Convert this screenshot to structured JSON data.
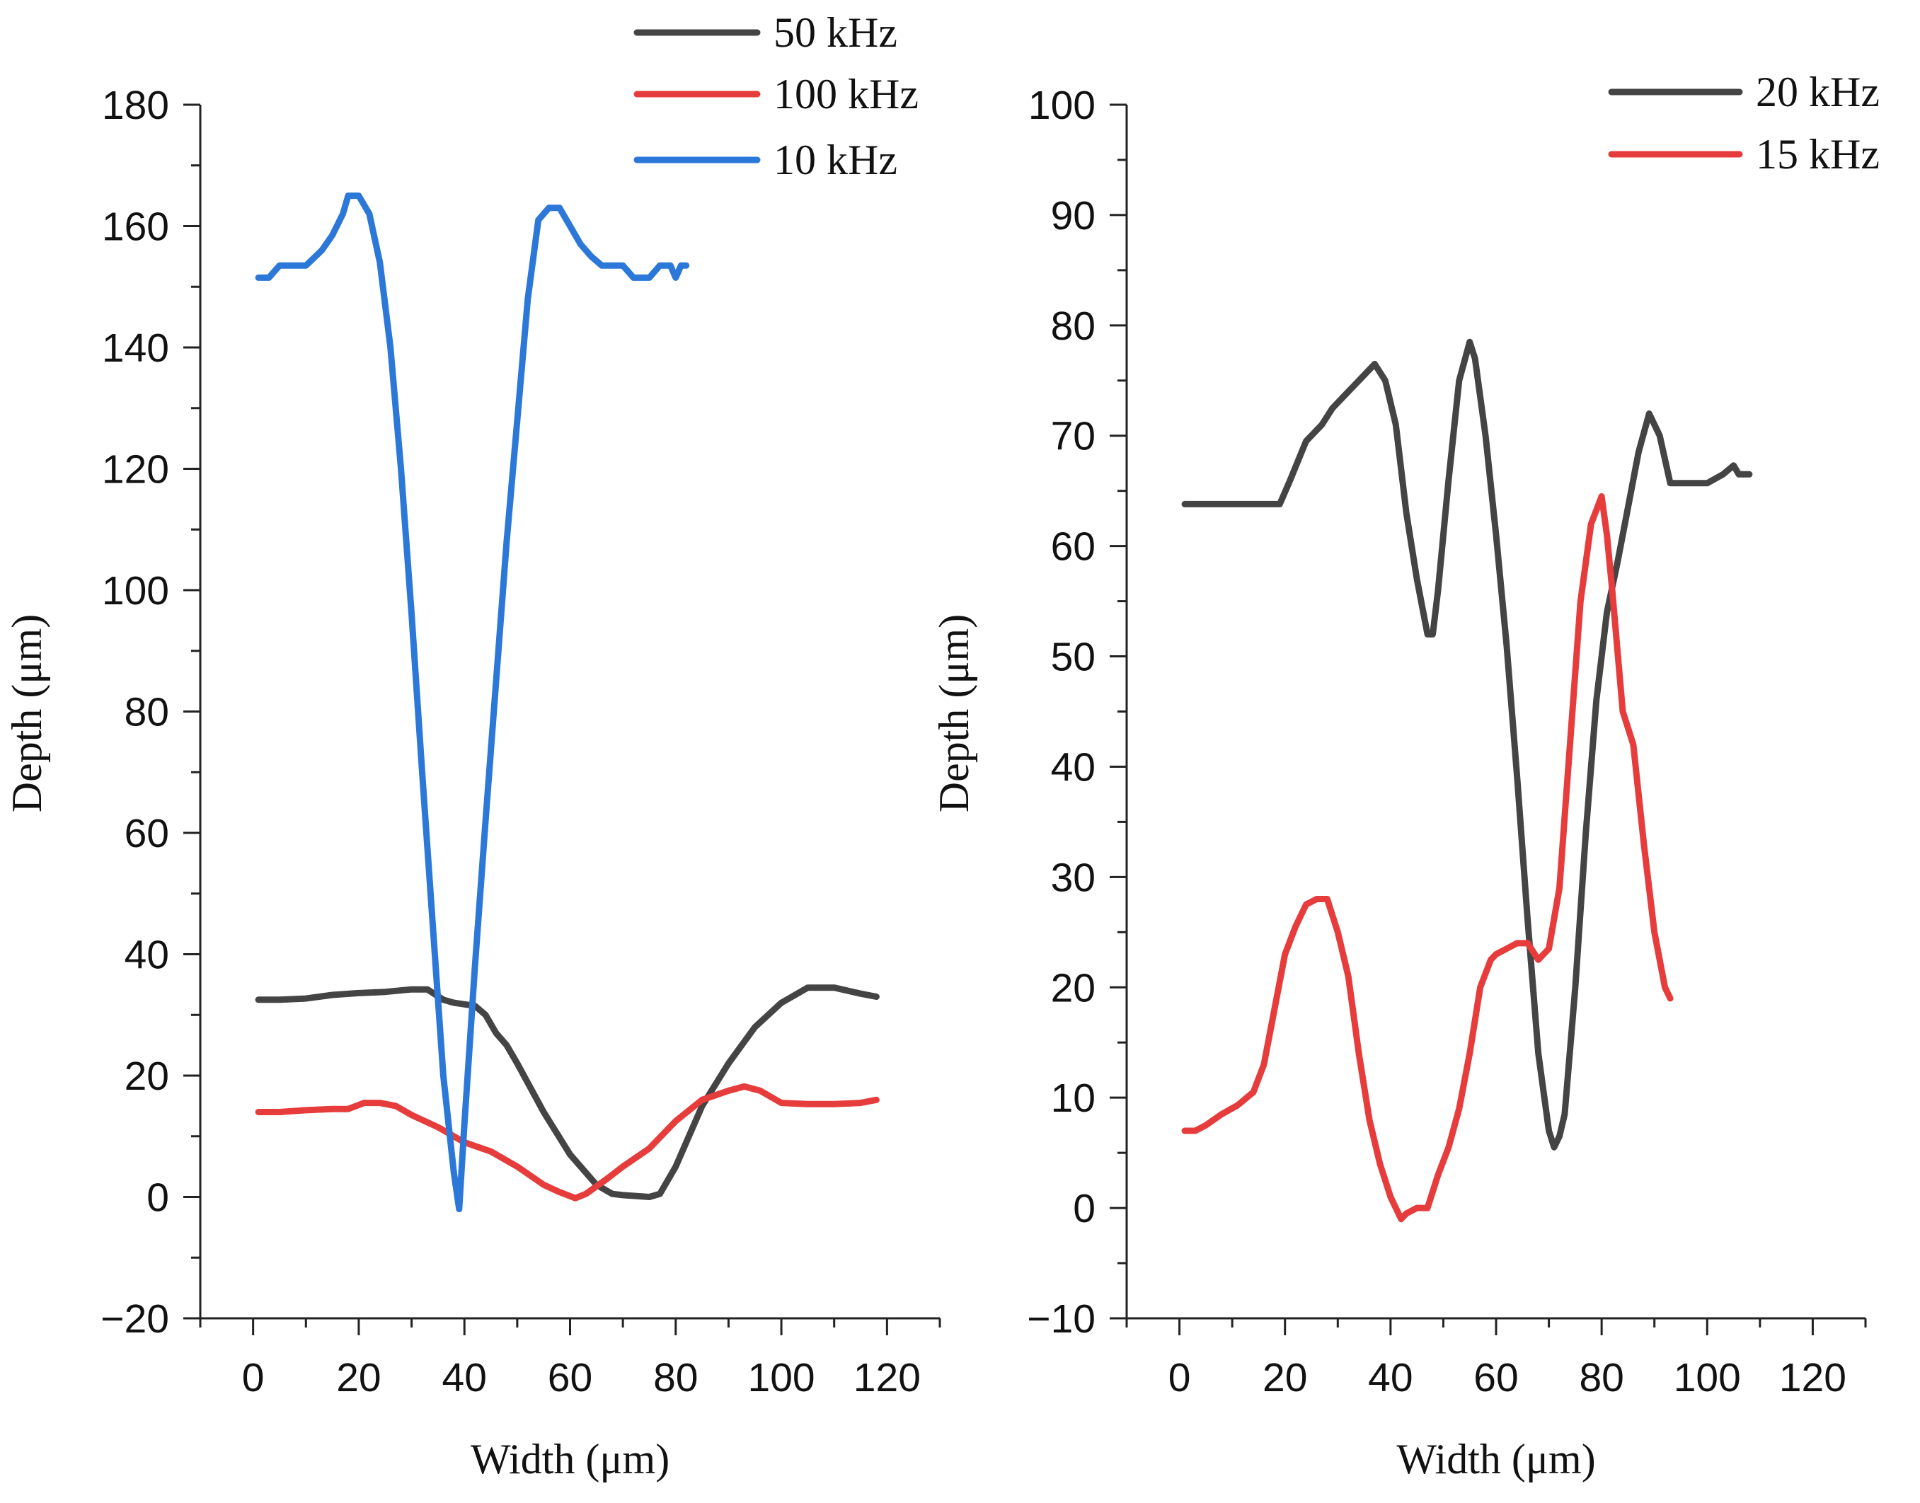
{
  "chart_data": [
    {
      "type": "line",
      "title": "",
      "xlabel": "Width (μm)",
      "ylabel": "Depth (μm)",
      "xlim": [
        -10,
        130
      ],
      "ylim": [
        -20,
        180
      ],
      "xticks": [
        0,
        20,
        40,
        60,
        80,
        100,
        120
      ],
      "yticks": [
        -20,
        0,
        20,
        40,
        60,
        80,
        100,
        120,
        140,
        160,
        180
      ],
      "xtick_labels": [
        "0",
        "20",
        "40",
        "60",
        "80",
        "100",
        "120"
      ],
      "ytick_labels": [
        "−20",
        "0",
        "20",
        "40",
        "60",
        "80",
        "100",
        "120",
        "140",
        "160",
        "180"
      ],
      "legend_position": "top-center",
      "series": [
        {
          "name": "50 kHz",
          "color": "#444444",
          "x": [
            1,
            5,
            10,
            15,
            20,
            25,
            30,
            33,
            36,
            38,
            42,
            44,
            46,
            48,
            50,
            55,
            60,
            65,
            68,
            70,
            75,
            77,
            80,
            85,
            90,
            95,
            100,
            105,
            110,
            115,
            118
          ],
          "y": [
            32.5,
            32.5,
            32.7,
            33.3,
            33.6,
            33.8,
            34.2,
            34.2,
            32.5,
            32,
            31.5,
            30,
            27,
            25,
            22,
            14,
            7,
            2,
            0.5,
            0.3,
            0,
            0.5,
            5,
            15,
            22,
            28,
            32,
            34.5,
            34.5,
            33.5,
            33
          ]
        },
        {
          "name": "100 kHz",
          "color": "#e63c3c",
          "x": [
            1,
            5,
            10,
            15,
            18,
            21,
            24,
            27,
            30,
            35,
            40,
            45,
            50,
            55,
            58,
            61,
            63,
            67,
            70,
            75,
            80,
            85,
            90,
            93,
            96,
            100,
            105,
            110,
            115,
            118
          ],
          "y": [
            14,
            14,
            14.3,
            14.5,
            14.5,
            15.5,
            15.5,
            15,
            13.5,
            11.5,
            9,
            7.5,
            5,
            2,
            0.8,
            -0.2,
            0.5,
            3,
            5,
            8,
            12.5,
            16,
            17.5,
            18.2,
            17.5,
            15.5,
            15.3,
            15.3,
            15.5,
            16
          ]
        },
        {
          "name": "10 kHz",
          "color": "#2b78d8",
          "x": [
            1,
            3,
            5,
            10,
            13,
            15,
            17,
            18,
            20,
            22,
            24,
            26,
            28,
            30,
            32,
            34,
            36,
            38,
            39,
            40,
            42,
            44,
            46,
            48,
            50,
            52,
            54,
            56,
            58,
            60,
            62,
            64,
            66,
            70,
            72,
            75,
            77,
            79,
            80,
            81,
            82
          ],
          "y": [
            151.5,
            151.5,
            153.5,
            153.5,
            156,
            158.5,
            162,
            165,
            165,
            162,
            154,
            140,
            120,
            96,
            70,
            45,
            20,
            4,
            -2,
            12,
            38,
            62,
            85,
            108,
            128,
            148,
            161,
            163,
            163,
            160,
            157,
            155,
            153.5,
            153.5,
            151.5,
            151.5,
            153.5,
            153.5,
            151.5,
            153.5,
            153.5
          ]
        }
      ]
    },
    {
      "type": "line",
      "title": "",
      "xlabel": "Width (μm)",
      "ylabel": "Depth (μm)",
      "xlim": [
        -10,
        130
      ],
      "ylim": [
        -10,
        100
      ],
      "xticks": [
        0,
        20,
        40,
        60,
        80,
        100,
        120
      ],
      "yticks": [
        -10,
        0,
        10,
        20,
        30,
        40,
        50,
        60,
        70,
        80,
        90,
        100
      ],
      "xtick_labels": [
        "0",
        "20",
        "40",
        "60",
        "80",
        "100",
        "120"
      ],
      "ytick_labels": [
        "−10",
        "0",
        "10",
        "20",
        "30",
        "40",
        "50",
        "60",
        "70",
        "80",
        "90",
        "100"
      ],
      "legend_position": "top-right",
      "series": [
        {
          "name": "20 kHz",
          "color": "#444444",
          "x": [
            1,
            5,
            10,
            15,
            19,
            21,
            24,
            27,
            29,
            32,
            35,
            37,
            39,
            41,
            43,
            45,
            47,
            48,
            49,
            51,
            53,
            55,
            56,
            58,
            60,
            62,
            64,
            66,
            68,
            70,
            71,
            72,
            73,
            75,
            77,
            79,
            81,
            83,
            85,
            87,
            89,
            91,
            93,
            95,
            100,
            103,
            105,
            106,
            108
          ],
          "y": [
            63.8,
            63.8,
            63.8,
            63.8,
            63.8,
            66,
            69.5,
            71,
            72.5,
            74,
            75.5,
            76.5,
            75,
            71,
            63,
            57,
            52,
            52,
            56,
            66,
            75,
            78.5,
            77,
            70,
            61,
            51,
            39,
            26,
            14,
            7,
            5.5,
            6.5,
            8.5,
            20,
            34,
            46,
            54,
            58.5,
            63.5,
            68.5,
            72,
            70,
            65.7,
            65.7,
            65.7,
            66.5,
            67.3,
            66.5,
            66.5
          ]
        },
        {
          "name": "15 kHz",
          "color": "#e63c3c",
          "x": [
            1,
            3,
            5,
            8,
            11,
            14,
            16,
            18,
            20,
            22,
            24,
            26,
            28,
            30,
            32,
            34,
            36,
            38,
            40,
            42,
            43,
            45,
            47,
            49,
            51,
            53,
            55,
            57,
            59,
            60,
            62,
            64,
            66,
            68,
            70,
            72,
            74,
            76,
            78,
            80,
            81,
            82,
            84,
            86,
            88,
            90,
            92,
            93
          ],
          "y": [
            7,
            7,
            7.5,
            8.5,
            9.3,
            10.5,
            13,
            18,
            23,
            25.5,
            27.5,
            28,
            28,
            25,
            21,
            14,
            8,
            4,
            1,
            -1,
            -0.5,
            0,
            0,
            3,
            5.5,
            9,
            14,
            20,
            22.5,
            23,
            23.5,
            24,
            24,
            22.5,
            23.5,
            29,
            42,
            55,
            62,
            64.5,
            61,
            56,
            45,
            42,
            33,
            25,
            20,
            19
          ]
        }
      ]
    }
  ]
}
